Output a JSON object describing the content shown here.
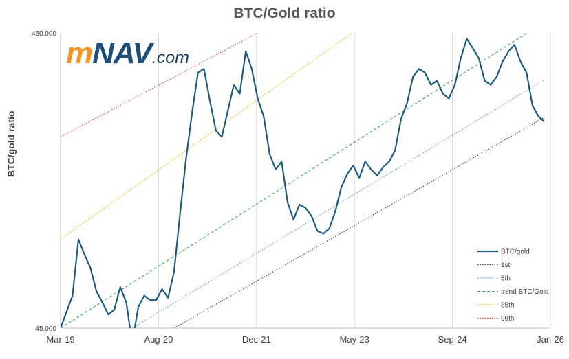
{
  "chart_data": {
    "type": "line",
    "title": "BTC/Gold ratio",
    "ylabel": "BTC/gold ratio",
    "xlabel": "",
    "y_scale": "log",
    "ylim": [
      45,
      450
    ],
    "y_tick_labels": [
      "45.000",
      "450.000"
    ],
    "x_tick_labels": [
      "Mar-19",
      "Aug-20",
      "Dec-21",
      "May-23",
      "Sep-24",
      "Jan-26"
    ],
    "xlim": [
      "2019-03",
      "2026-01"
    ],
    "grid": "vertical",
    "legend_position": "bottom-right",
    "logo": "mNAV.com",
    "series": [
      {
        "name": "BTC/gold",
        "style": "solid",
        "color": "#1b5c7e",
        "x": [
          "2019-03",
          "2019-05",
          "2019-06",
          "2019-07",
          "2019-08",
          "2019-09",
          "2019-10",
          "2019-11",
          "2019-12",
          "2020-01",
          "2020-02",
          "2020-03",
          "2020-04",
          "2020-05",
          "2020-06",
          "2020-07",
          "2020-08",
          "2020-09",
          "2020-10",
          "2020-11",
          "2020-12",
          "2021-01",
          "2021-02",
          "2021-03",
          "2021-04",
          "2021-05",
          "2021-06",
          "2021-07",
          "2021-08",
          "2021-09",
          "2021-10",
          "2021-11",
          "2021-12",
          "2022-01",
          "2022-02",
          "2022-03",
          "2022-04",
          "2022-05",
          "2022-06",
          "2022-07",
          "2022-08",
          "2022-09",
          "2022-10",
          "2022-11",
          "2022-12",
          "2023-01",
          "2023-02",
          "2023-03",
          "2023-04",
          "2023-05",
          "2023-06",
          "2023-07",
          "2023-08",
          "2023-09",
          "2023-10",
          "2023-11",
          "2023-12",
          "2024-01",
          "2024-02",
          "2024-03",
          "2024-04",
          "2024-05",
          "2024-06",
          "2024-07",
          "2024-08",
          "2024-09",
          "2024-10",
          "2024-11",
          "2024-12",
          "2025-01",
          "2025-02",
          "2025-03",
          "2025-04",
          "2025-05",
          "2025-06",
          "2025-07",
          "2025-08",
          "2025-09",
          "2025-10",
          "2025-11",
          "2025-12"
        ],
        "values": [
          45,
          58,
          90,
          80,
          72,
          60,
          55,
          50,
          52,
          62,
          55,
          40,
          53,
          58,
          56,
          56,
          61,
          57,
          70,
          110,
          168,
          240,
          330,
          340,
          265,
          210,
          200,
          245,
          300,
          280,
          390,
          340,
          270,
          235,
          175,
          155,
          165,
          120,
          105,
          118,
          115,
          108,
          96,
          94,
          98,
          112,
          135,
          150,
          160,
          145,
          165,
          155,
          148,
          158,
          165,
          180,
          230,
          260,
          320,
          340,
          330,
          300,
          310,
          280,
          270,
          300,
          370,
          430,
          400,
          370,
          310,
          300,
          320,
          360,
          390,
          410,
          360,
          330,
          255,
          235,
          225
        ]
      },
      {
        "name": "1st",
        "style": "dotted",
        "color": "#404040",
        "x": [
          "2020-10",
          "2025-12"
        ],
        "values": [
          45,
          233
        ]
      },
      {
        "name": "5th",
        "style": "dotted",
        "color": "#5b9bd5",
        "x": [
          "2020-03",
          "2025-12"
        ],
        "values": [
          45,
          312
        ]
      },
      {
        "name": "trend BTC/Gold",
        "style": "dashed",
        "color": "#3aa655",
        "x": [
          "2019-03",
          "2025-12"
        ],
        "values": [
          45,
          490
        ]
      },
      {
        "name": "85th",
        "style": "dotted",
        "color": "#f5b800",
        "x": [
          "2019-03",
          "2023-07"
        ],
        "values": [
          90,
          500
        ]
      },
      {
        "name": "99th",
        "style": "dotted",
        "color": "#e8432d",
        "x": [
          "2019-03",
          "2021-12"
        ],
        "values": [
          200,
          450
        ]
      }
    ]
  }
}
